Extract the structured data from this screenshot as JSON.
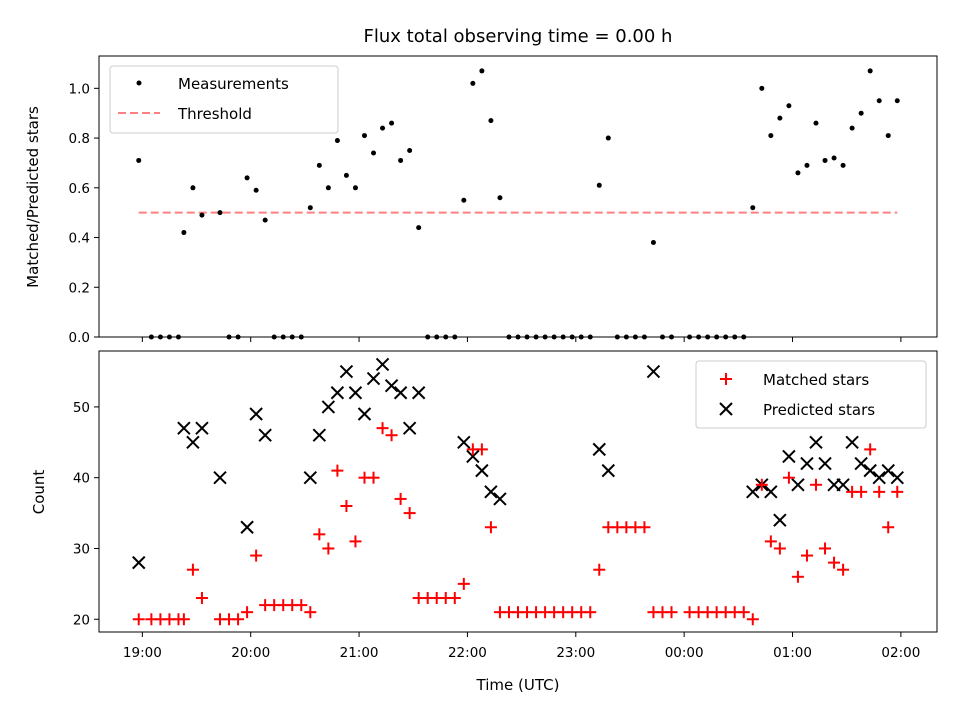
{
  "chart_data": [
    {
      "type": "scatter",
      "title": "Flux total observing time = 0.00 h",
      "xlabel": "",
      "ylabel": "Matched/Predicted stars",
      "ylim": [
        0,
        1.13
      ],
      "yticks": [
        0.0,
        0.2,
        0.4,
        0.6,
        0.8,
        1.0
      ],
      "ytick_labels": [
        "0.0",
        "0.2",
        "0.4",
        "0.6",
        "0.8",
        "1.0"
      ],
      "legend_position": "upper-left",
      "series": [
        {
          "name": "Measurements",
          "marker": "dot",
          "color": "#000000",
          "points": [
            [
              "18:58",
              0.71
            ],
            [
              "19:05",
              0.0
            ],
            [
              "19:10",
              0.0
            ],
            [
              "19:15",
              0.0
            ],
            [
              "19:20",
              0.0
            ],
            [
              "19:23",
              0.42
            ],
            [
              "19:28",
              0.6
            ],
            [
              "19:33",
              0.49
            ],
            [
              "19:43",
              0.5
            ],
            [
              "19:48",
              0.0
            ],
            [
              "19:53",
              0.0
            ],
            [
              "19:58",
              0.64
            ],
            [
              "20:03",
              0.59
            ],
            [
              "20:08",
              0.47
            ],
            [
              "20:13",
              0.0
            ],
            [
              "20:18",
              0.0
            ],
            [
              "20:23",
              0.0
            ],
            [
              "20:28",
              0.0
            ],
            [
              "20:33",
              0.52
            ],
            [
              "20:38",
              0.69
            ],
            [
              "20:43",
              0.6
            ],
            [
              "20:48",
              0.79
            ],
            [
              "20:53",
              0.65
            ],
            [
              "20:58",
              0.6
            ],
            [
              "21:03",
              0.81
            ],
            [
              "21:08",
              0.74
            ],
            [
              "21:13",
              0.84
            ],
            [
              "21:18",
              0.86
            ],
            [
              "21:23",
              0.71
            ],
            [
              "21:28",
              0.75
            ],
            [
              "21:33",
              0.44
            ],
            [
              "21:38",
              0.0
            ],
            [
              "21:43",
              0.0
            ],
            [
              "21:48",
              0.0
            ],
            [
              "21:53",
              0.0
            ],
            [
              "21:58",
              0.55
            ],
            [
              "22:03",
              1.02
            ],
            [
              "22:08",
              1.07
            ],
            [
              "22:13",
              0.87
            ],
            [
              "22:18",
              0.56
            ],
            [
              "22:23",
              0.0
            ],
            [
              "22:28",
              0.0
            ],
            [
              "22:33",
              0.0
            ],
            [
              "22:38",
              0.0
            ],
            [
              "22:43",
              0.0
            ],
            [
              "22:48",
              0.0
            ],
            [
              "22:53",
              0.0
            ],
            [
              "22:58",
              0.0
            ],
            [
              "23:03",
              0.0
            ],
            [
              "23:08",
              0.0
            ],
            [
              "23:13",
              0.61
            ],
            [
              "23:18",
              0.8
            ],
            [
              "23:23",
              0.0
            ],
            [
              "23:28",
              0.0
            ],
            [
              "23:33",
              0.0
            ],
            [
              "23:38",
              0.0
            ],
            [
              "23:43",
              0.38
            ],
            [
              "23:48",
              0.0
            ],
            [
              "23:53",
              0.0
            ],
            [
              "00:03",
              0.0
            ],
            [
              "00:08",
              0.0
            ],
            [
              "00:13",
              0.0
            ],
            [
              "00:18",
              0.0
            ],
            [
              "00:23",
              0.0
            ],
            [
              "00:28",
              0.0
            ],
            [
              "00:33",
              0.0
            ],
            [
              "00:38",
              0.52
            ],
            [
              "00:43",
              1.0
            ],
            [
              "00:48",
              0.81
            ],
            [
              "00:53",
              0.88
            ],
            [
              "00:58",
              0.93
            ],
            [
              "01:03",
              0.66
            ],
            [
              "01:08",
              0.69
            ],
            [
              "01:13",
              0.86
            ],
            [
              "01:18",
              0.71
            ],
            [
              "01:23",
              0.72
            ],
            [
              "01:28",
              0.69
            ],
            [
              "01:33",
              0.84
            ],
            [
              "01:38",
              0.9
            ],
            [
              "01:43",
              1.07
            ],
            [
              "01:48",
              0.95
            ],
            [
              "01:53",
              0.81
            ],
            [
              "01:58",
              0.95
            ]
          ]
        },
        {
          "name": "Threshold",
          "line_style": "dashed",
          "color": "#ff8080",
          "points": [
            [
              "18:58",
              0.5
            ],
            [
              "01:58",
              0.5
            ]
          ]
        }
      ]
    },
    {
      "type": "scatter",
      "xlabel": "Time (UTC)",
      "ylabel": "Count",
      "ylim": [
        18.2,
        57.9
      ],
      "yticks": [
        20,
        30,
        40,
        50
      ],
      "ytick_labels": [
        "20",
        "30",
        "40",
        "50"
      ],
      "xticks": [
        "19:00",
        "20:00",
        "21:00",
        "22:00",
        "23:00",
        "00:00",
        "01:00",
        "02:00"
      ],
      "xlim": [
        "18:36",
        "02:20"
      ],
      "legend_position": "upper-right",
      "series": [
        {
          "name": "Matched stars",
          "marker": "plus",
          "color": "#ff0000",
          "points": [
            [
              "18:58",
              20
            ],
            [
              "19:05",
              20
            ],
            [
              "19:10",
              20
            ],
            [
              "19:15",
              20
            ],
            [
              "19:20",
              20
            ],
            [
              "19:23",
              20
            ],
            [
              "19:28",
              27
            ],
            [
              "19:33",
              23
            ],
            [
              "19:43",
              20
            ],
            [
              "19:48",
              20
            ],
            [
              "19:53",
              20
            ],
            [
              "19:58",
              21
            ],
            [
              "20:03",
              29
            ],
            [
              "20:08",
              22
            ],
            [
              "20:13",
              22
            ],
            [
              "20:18",
              22
            ],
            [
              "20:23",
              22
            ],
            [
              "20:28",
              22
            ],
            [
              "20:33",
              21
            ],
            [
              "20:38",
              32
            ],
            [
              "20:43",
              30
            ],
            [
              "20:48",
              41
            ],
            [
              "20:53",
              36
            ],
            [
              "20:58",
              31
            ],
            [
              "21:03",
              40
            ],
            [
              "21:08",
              40
            ],
            [
              "21:13",
              47
            ],
            [
              "21:18",
              46
            ],
            [
              "21:23",
              37
            ],
            [
              "21:28",
              35
            ],
            [
              "21:33",
              23
            ],
            [
              "21:38",
              23
            ],
            [
              "21:43",
              23
            ],
            [
              "21:48",
              23
            ],
            [
              "21:53",
              23
            ],
            [
              "21:58",
              25
            ],
            [
              "22:03",
              44
            ],
            [
              "22:08",
              44
            ],
            [
              "22:13",
              33
            ],
            [
              "22:18",
              21
            ],
            [
              "22:23",
              21
            ],
            [
              "22:28",
              21
            ],
            [
              "22:33",
              21
            ],
            [
              "22:38",
              21
            ],
            [
              "22:43",
              21
            ],
            [
              "22:48",
              21
            ],
            [
              "22:53",
              21
            ],
            [
              "22:58",
              21
            ],
            [
              "23:03",
              21
            ],
            [
              "23:08",
              21
            ],
            [
              "23:13",
              27
            ],
            [
              "23:18",
              33
            ],
            [
              "23:23",
              33
            ],
            [
              "23:28",
              33
            ],
            [
              "23:33",
              33
            ],
            [
              "23:38",
              33
            ],
            [
              "23:43",
              21
            ],
            [
              "23:48",
              21
            ],
            [
              "23:53",
              21
            ],
            [
              "00:03",
              21
            ],
            [
              "00:08",
              21
            ],
            [
              "00:13",
              21
            ],
            [
              "00:18",
              21
            ],
            [
              "00:23",
              21
            ],
            [
              "00:28",
              21
            ],
            [
              "00:33",
              21
            ],
            [
              "00:38",
              20
            ],
            [
              "00:43",
              39
            ],
            [
              "00:48",
              31
            ],
            [
              "00:53",
              30
            ],
            [
              "00:58",
              40
            ],
            [
              "01:03",
              26
            ],
            [
              "01:08",
              29
            ],
            [
              "01:13",
              39
            ],
            [
              "01:18",
              30
            ],
            [
              "01:23",
              28
            ],
            [
              "01:28",
              27
            ],
            [
              "01:33",
              38
            ],
            [
              "01:38",
              38
            ],
            [
              "01:43",
              44
            ],
            [
              "01:48",
              38
            ],
            [
              "01:53",
              33
            ],
            [
              "01:58",
              38
            ]
          ]
        },
        {
          "name": "Predicted stars",
          "marker": "x",
          "color": "#000000",
          "points": [
            [
              "18:58",
              28
            ],
            [
              "19:23",
              47
            ],
            [
              "19:28",
              45
            ],
            [
              "19:33",
              47
            ],
            [
              "19:43",
              40
            ],
            [
              "19:58",
              33
            ],
            [
              "20:03",
              49
            ],
            [
              "20:08",
              46
            ],
            [
              "20:33",
              40
            ],
            [
              "20:38",
              46
            ],
            [
              "20:43",
              50
            ],
            [
              "20:48",
              52
            ],
            [
              "20:53",
              55
            ],
            [
              "20:58",
              52
            ],
            [
              "21:03",
              49
            ],
            [
              "21:08",
              54
            ],
            [
              "21:13",
              56
            ],
            [
              "21:18",
              53
            ],
            [
              "21:23",
              52
            ],
            [
              "21:28",
              47
            ],
            [
              "21:33",
              52
            ],
            [
              "21:58",
              45
            ],
            [
              "22:03",
              43
            ],
            [
              "22:08",
              41
            ],
            [
              "22:13",
              38
            ],
            [
              "22:18",
              37
            ],
            [
              "23:13",
              44
            ],
            [
              "23:18",
              41
            ],
            [
              "23:43",
              55
            ],
            [
              "00:38",
              38
            ],
            [
              "00:43",
              39
            ],
            [
              "00:48",
              38
            ],
            [
              "00:53",
              34
            ],
            [
              "00:58",
              43
            ],
            [
              "01:03",
              39
            ],
            [
              "01:08",
              42
            ],
            [
              "01:13",
              45
            ],
            [
              "01:18",
              42
            ],
            [
              "01:23",
              39
            ],
            [
              "01:28",
              39
            ],
            [
              "01:33",
              45
            ],
            [
              "01:38",
              42
            ],
            [
              "01:43",
              41
            ],
            [
              "01:48",
              40
            ],
            [
              "01:53",
              41
            ],
            [
              "01:58",
              40
            ]
          ]
        }
      ]
    }
  ]
}
